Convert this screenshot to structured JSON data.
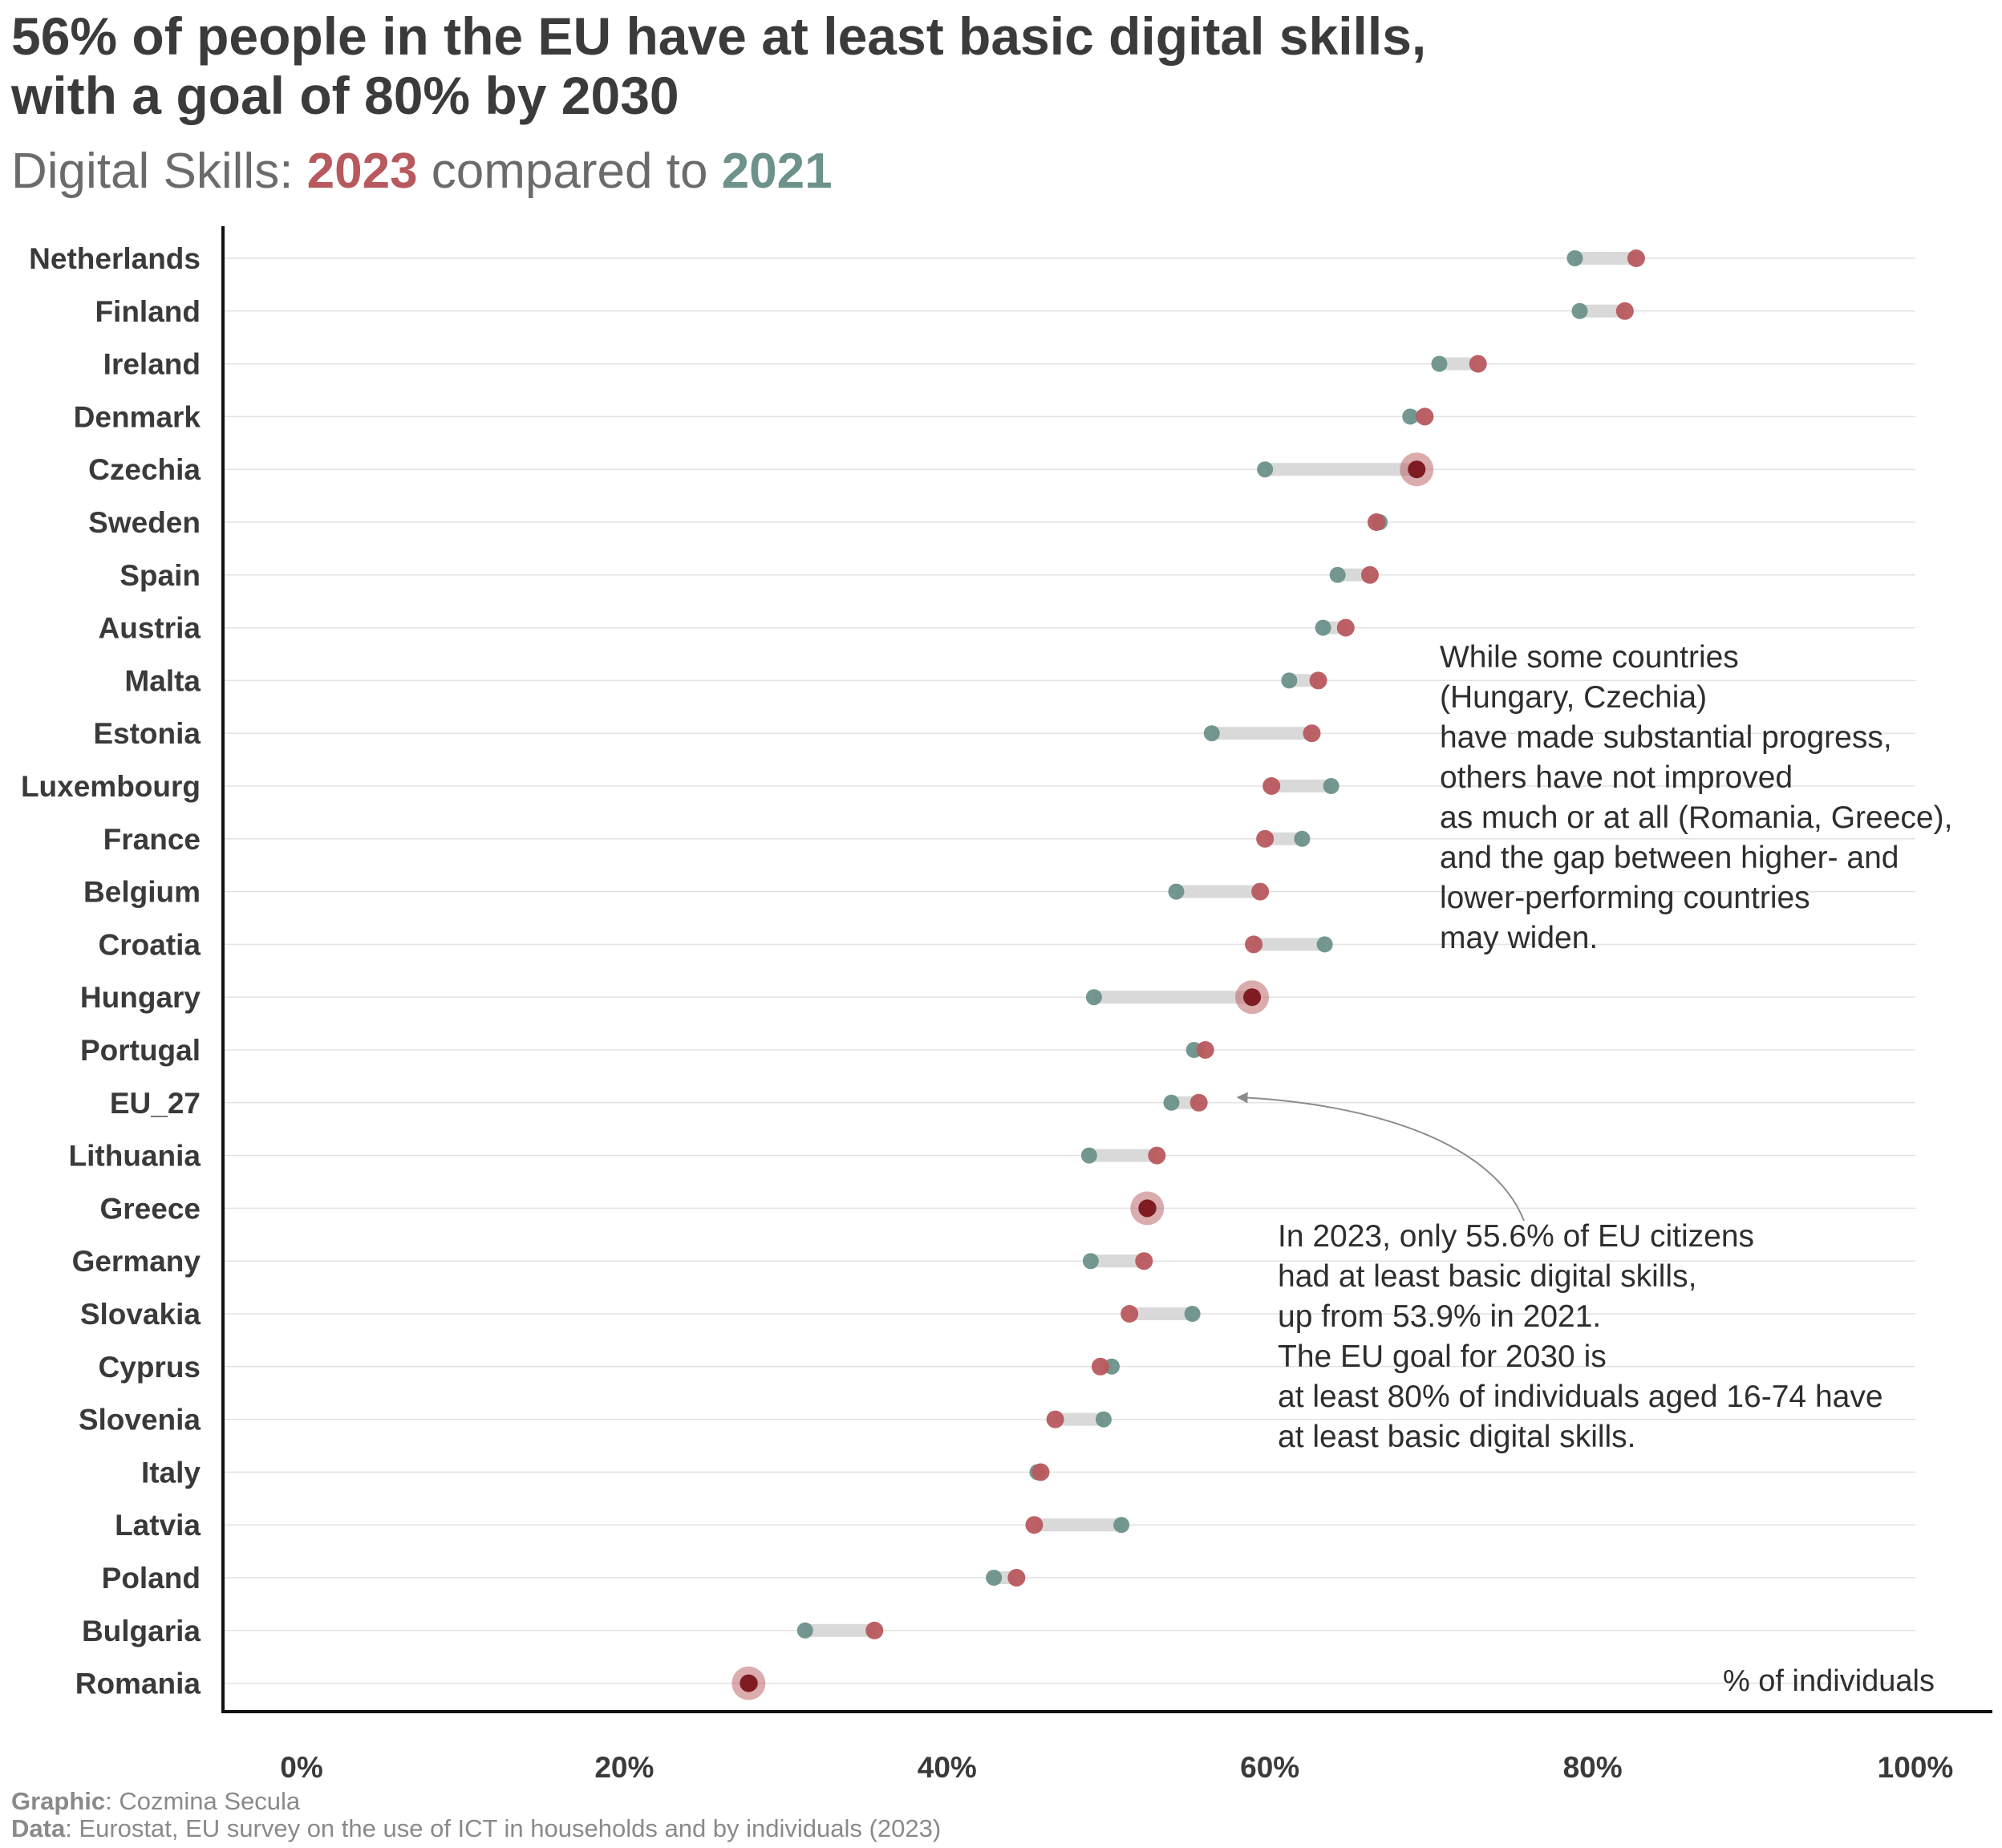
{
  "title_lines": [
    "56% of people in the EU have at least basic digital skills,",
    "with a goal of 80% by 2030"
  ],
  "subtitle": {
    "prefix": "Digital Skills: ",
    "year_a": "2023",
    "middle": " compared to ",
    "year_b": "2021"
  },
  "colors": {
    "y2023": "#b8595e",
    "y2021": "#6d918b",
    "segment": "#d9d9d9",
    "highlight": "#7e1c22"
  },
  "chart_data": {
    "type": "scatter",
    "subtype": "dumbbell",
    "x_unit_label": "% of individuals",
    "xlim": [
      0,
      100
    ],
    "x_ticks": [
      "0%",
      "20%",
      "40%",
      "60%",
      "80%",
      "100%"
    ],
    "x_tick_values": [
      0,
      20,
      40,
      60,
      80,
      100
    ],
    "grid": "horizontal",
    "categories": [
      "Netherlands",
      "Finland",
      "Ireland",
      "Denmark",
      "Czechia",
      "Sweden",
      "Spain",
      "Austria",
      "Malta",
      "Estonia",
      "Luxembourg",
      "France",
      "Belgium",
      "Croatia",
      "Hungary",
      "Portugal",
      "EU_27",
      "Lithuania",
      "Greece",
      "Germany",
      "Slovakia",
      "Cyprus",
      "Slovenia",
      "Italy",
      "Latvia",
      "Poland",
      "Bulgaria",
      "Romania"
    ],
    "series": [
      {
        "name": "2021",
        "values": [
          78.9,
          79.2,
          70.5,
          68.7,
          59.7,
          66.8,
          64.2,
          63.3,
          61.2,
          56.4,
          63.8,
          62.0,
          54.2,
          63.4,
          49.1,
          55.3,
          53.9,
          48.8,
          52.5,
          48.9,
          55.2,
          50.2,
          49.7,
          45.6,
          50.8,
          42.9,
          31.2,
          27.8
        ]
      },
      {
        "name": "2023",
        "values": [
          82.7,
          82.0,
          72.9,
          69.6,
          69.1,
          66.6,
          66.2,
          64.7,
          63.0,
          62.6,
          60.1,
          59.7,
          59.4,
          59.0,
          58.9,
          56.0,
          55.6,
          53.0,
          52.4,
          52.2,
          51.3,
          49.5,
          46.7,
          45.8,
          45.4,
          44.3,
          35.5,
          27.7
        ]
      }
    ],
    "highlighted": [
      "Czechia",
      "Hungary",
      "Greece",
      "Romania"
    ],
    "annotations": [
      "While some countries (Hungary, Czechia) have made substantial progress, others have not improved as much or at all (Romania, Greece), and the gap between higher- and lower-performing countries may widen.",
      "In 2023, only 55.6% of EU citizens had at least basic digital skills, up from 53.9% in 2021. The EU goal for 2030 is at least 80% of individuals aged 16-74 have at least basic digital skills."
    ]
  },
  "annotation_1_lines": [
    "While some countries",
    "(Hungary, Czechia)",
    "have made substantial progress,",
    "others have not improved",
    "as much or at all (Romania, Greece),",
    "and the gap between higher- and",
    "lower-performing countries",
    "may widen."
  ],
  "annotation_2_lines": [
    "In 2023, only 55.6% of EU citizens",
    "had at least basic digital skills,",
    "up from 53.9% in 2021.",
    "The EU goal for 2030 is",
    "at least 80% of individuals aged 16-74 have",
    "at least basic digital skills."
  ],
  "footer": {
    "graphic_label": "Graphic",
    "graphic_value": ": Cozmina Secula",
    "data_label": "Data",
    "data_value": ": Eurostat, EU survey on the use of ICT in households and by individuals (2023)"
  }
}
